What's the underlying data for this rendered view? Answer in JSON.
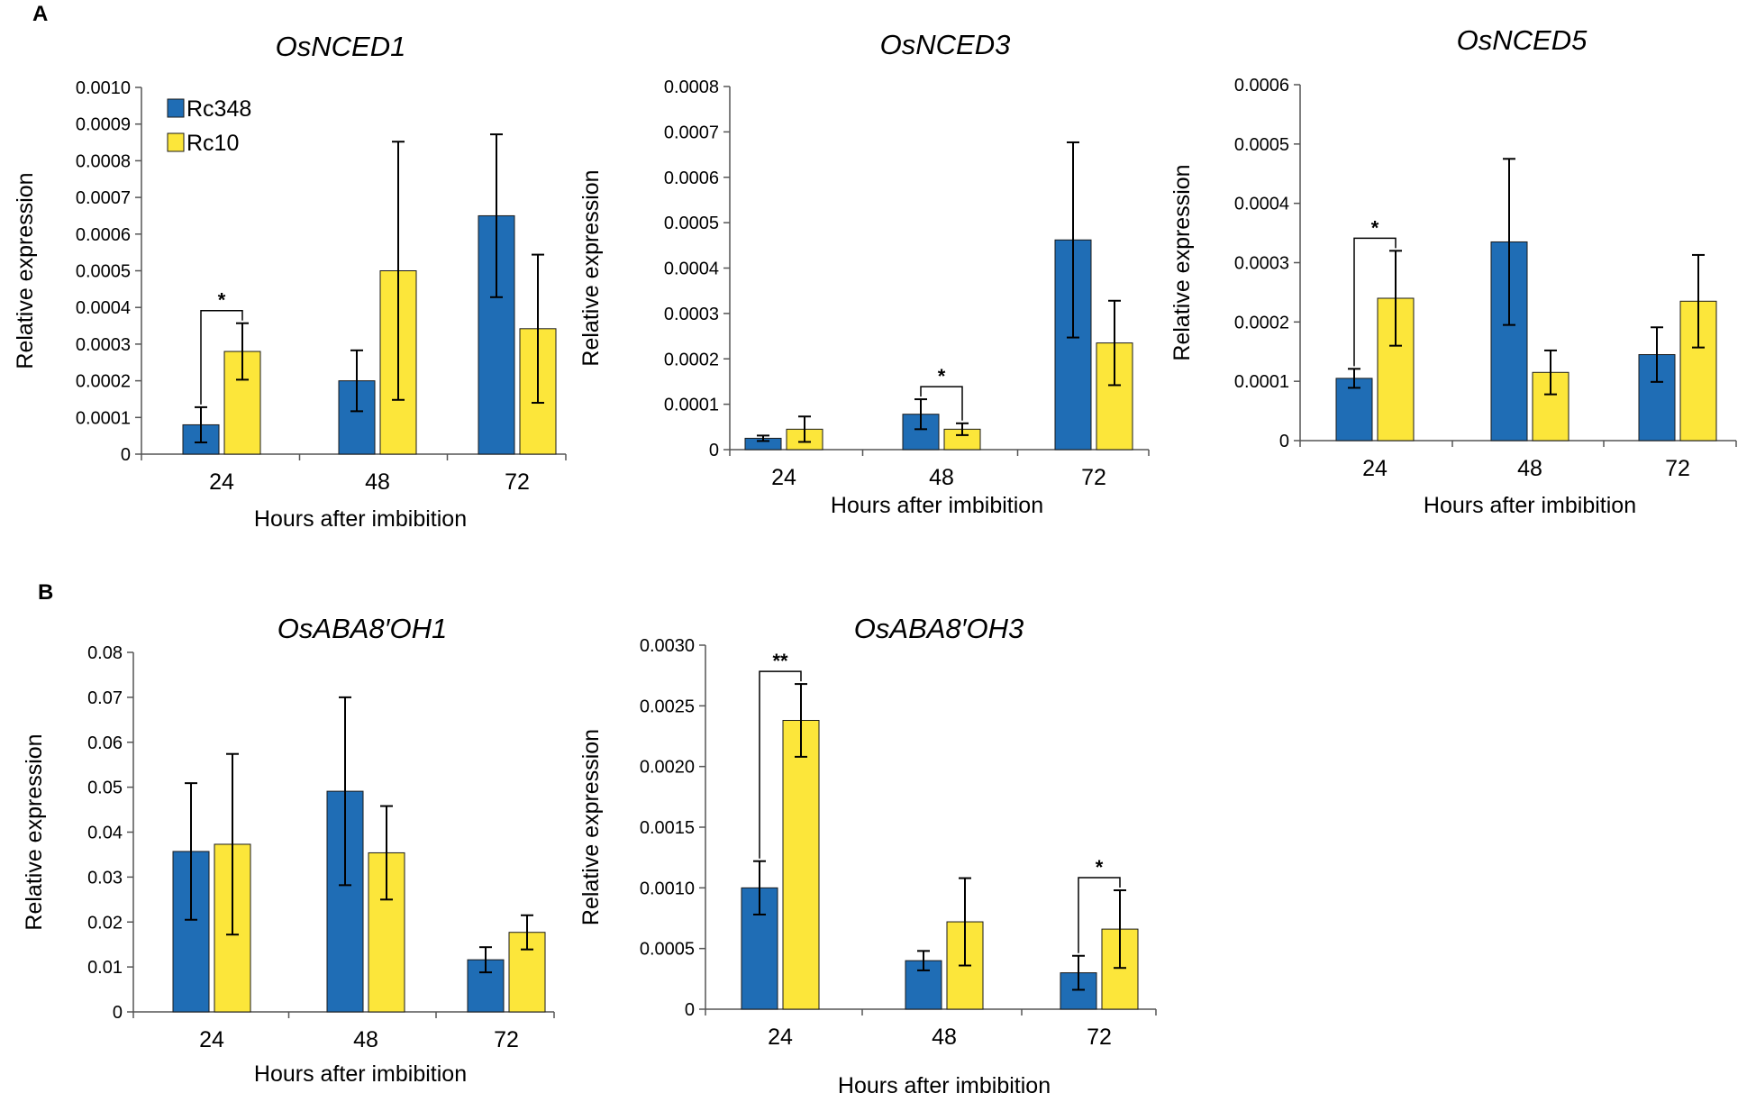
{
  "panels": {
    "A": "A",
    "B": "B"
  },
  "legend": [
    {
      "name": "Rc348",
      "color": "#1f6db5"
    },
    {
      "name": "Rc10",
      "color": "#fce63a"
    }
  ],
  "colors": {
    "Rc348": "#1f6db5",
    "Rc10": "#fce63a",
    "bar_stroke": "#1a1a1a",
    "axis": "#555555"
  },
  "chart_data": [
    {
      "type": "bar",
      "title": "OsNCED1",
      "xlabel": "Hours after imbibition",
      "ylabel": "Relative expression",
      "ylim": [
        0,
        0.001
      ],
      "yticks": [
        "0",
        "0.0001",
        "0.0002",
        "0.0003",
        "0.0004",
        "0.0005",
        "0.0006",
        "0.0007",
        "0.0008",
        "0.0009",
        "0.0010"
      ],
      "categories": [
        "24",
        "48",
        "72"
      ],
      "series": [
        {
          "name": "Rc348",
          "values": [
            8e-05,
            0.0002,
            0.00065
          ],
          "errors": [
            4.8e-05,
            8.3e-05,
            0.000222
          ]
        },
        {
          "name": "Rc10",
          "values": [
            0.00028,
            0.0005,
            0.000342
          ],
          "errors": [
            7.7e-05,
            0.000352,
            0.000202
          ]
        }
      ],
      "significance": [
        {
          "category": "24",
          "label": "*"
        }
      ]
    },
    {
      "type": "bar",
      "title": "OsNCED3",
      "xlabel": "Hours after imbibition",
      "ylabel": "Relative expression",
      "ylim": [
        0,
        0.0008
      ],
      "yticks": [
        "0",
        "0.0001",
        "0.0002",
        "0.0003",
        "0.0004",
        "0.0005",
        "0.0006",
        "0.0007",
        "0.0008"
      ],
      "categories": [
        "24",
        "48",
        "72"
      ],
      "series": [
        {
          "name": "Rc348",
          "values": [
            2.5e-05,
            7.8e-05,
            0.000462
          ],
          "errors": [
            6e-06,
            3.3e-05,
            0.000215
          ]
        },
        {
          "name": "Rc10",
          "values": [
            4.5e-05,
            4.5e-05,
            0.000235
          ],
          "errors": [
            2.8e-05,
            1.3e-05,
            9.3e-05
          ]
        }
      ],
      "significance": [
        {
          "category": "48",
          "label": "*"
        }
      ]
    },
    {
      "type": "bar",
      "title": "OsNCED5",
      "xlabel": "Hours after imbibition",
      "ylabel": "Relative expression",
      "ylim": [
        0,
        0.0006
      ],
      "yticks": [
        "0",
        "0.0001",
        "0.0002",
        "0.0003",
        "0.0004",
        "0.0005",
        "0.0006"
      ],
      "categories": [
        "24",
        "48",
        "72"
      ],
      "series": [
        {
          "name": "Rc348",
          "values": [
            0.000105,
            0.000335,
            0.000145
          ],
          "errors": [
            1.6e-05,
            0.00014,
            4.6e-05
          ]
        },
        {
          "name": "Rc10",
          "values": [
            0.00024,
            0.000115,
            0.000235
          ],
          "errors": [
            8e-05,
            3.7e-05,
            7.8e-05
          ]
        }
      ],
      "significance": [
        {
          "category": "24",
          "label": "*"
        }
      ]
    },
    {
      "type": "bar",
      "title": "OsABA8′OH1",
      "xlabel": "Hours after imbibition",
      "ylabel": "Relative expression",
      "ylim": [
        0,
        0.08
      ],
      "yticks": [
        "0",
        "0.01",
        "0.02",
        "0.03",
        "0.04",
        "0.05",
        "0.06",
        "0.07",
        "0.08"
      ],
      "categories": [
        "24",
        "48",
        "72"
      ],
      "series": [
        {
          "name": "Rc348",
          "values": [
            0.0357,
            0.0491,
            0.0116
          ],
          "errors": [
            0.0152,
            0.0209,
            0.0028
          ]
        },
        {
          "name": "Rc10",
          "values": [
            0.0373,
            0.0354,
            0.0177
          ],
          "errors": [
            0.0201,
            0.0104,
            0.0038
          ]
        }
      ],
      "significance": []
    },
    {
      "type": "bar",
      "title": "OsABA8′OH3",
      "xlabel": "Hours after imbibition",
      "ylabel": "Relative expression",
      "ylim": [
        0,
        0.003
      ],
      "yticks": [
        "0",
        "0.0005",
        "0.0010",
        "0.0015",
        "0.0020",
        "0.0025",
        "0.0030"
      ],
      "categories": [
        "24",
        "48",
        "72"
      ],
      "series": [
        {
          "name": "Rc348",
          "values": [
            0.001,
            0.0004,
            0.0003
          ],
          "errors": [
            0.00022,
            8e-05,
            0.00014
          ]
        },
        {
          "name": "Rc10",
          "values": [
            0.00238,
            0.00072,
            0.00066
          ],
          "errors": [
            0.0003,
            0.00036,
            0.00032
          ]
        }
      ],
      "significance": [
        {
          "category": "24",
          "label": "**"
        },
        {
          "category": "72",
          "label": "*"
        }
      ]
    }
  ]
}
